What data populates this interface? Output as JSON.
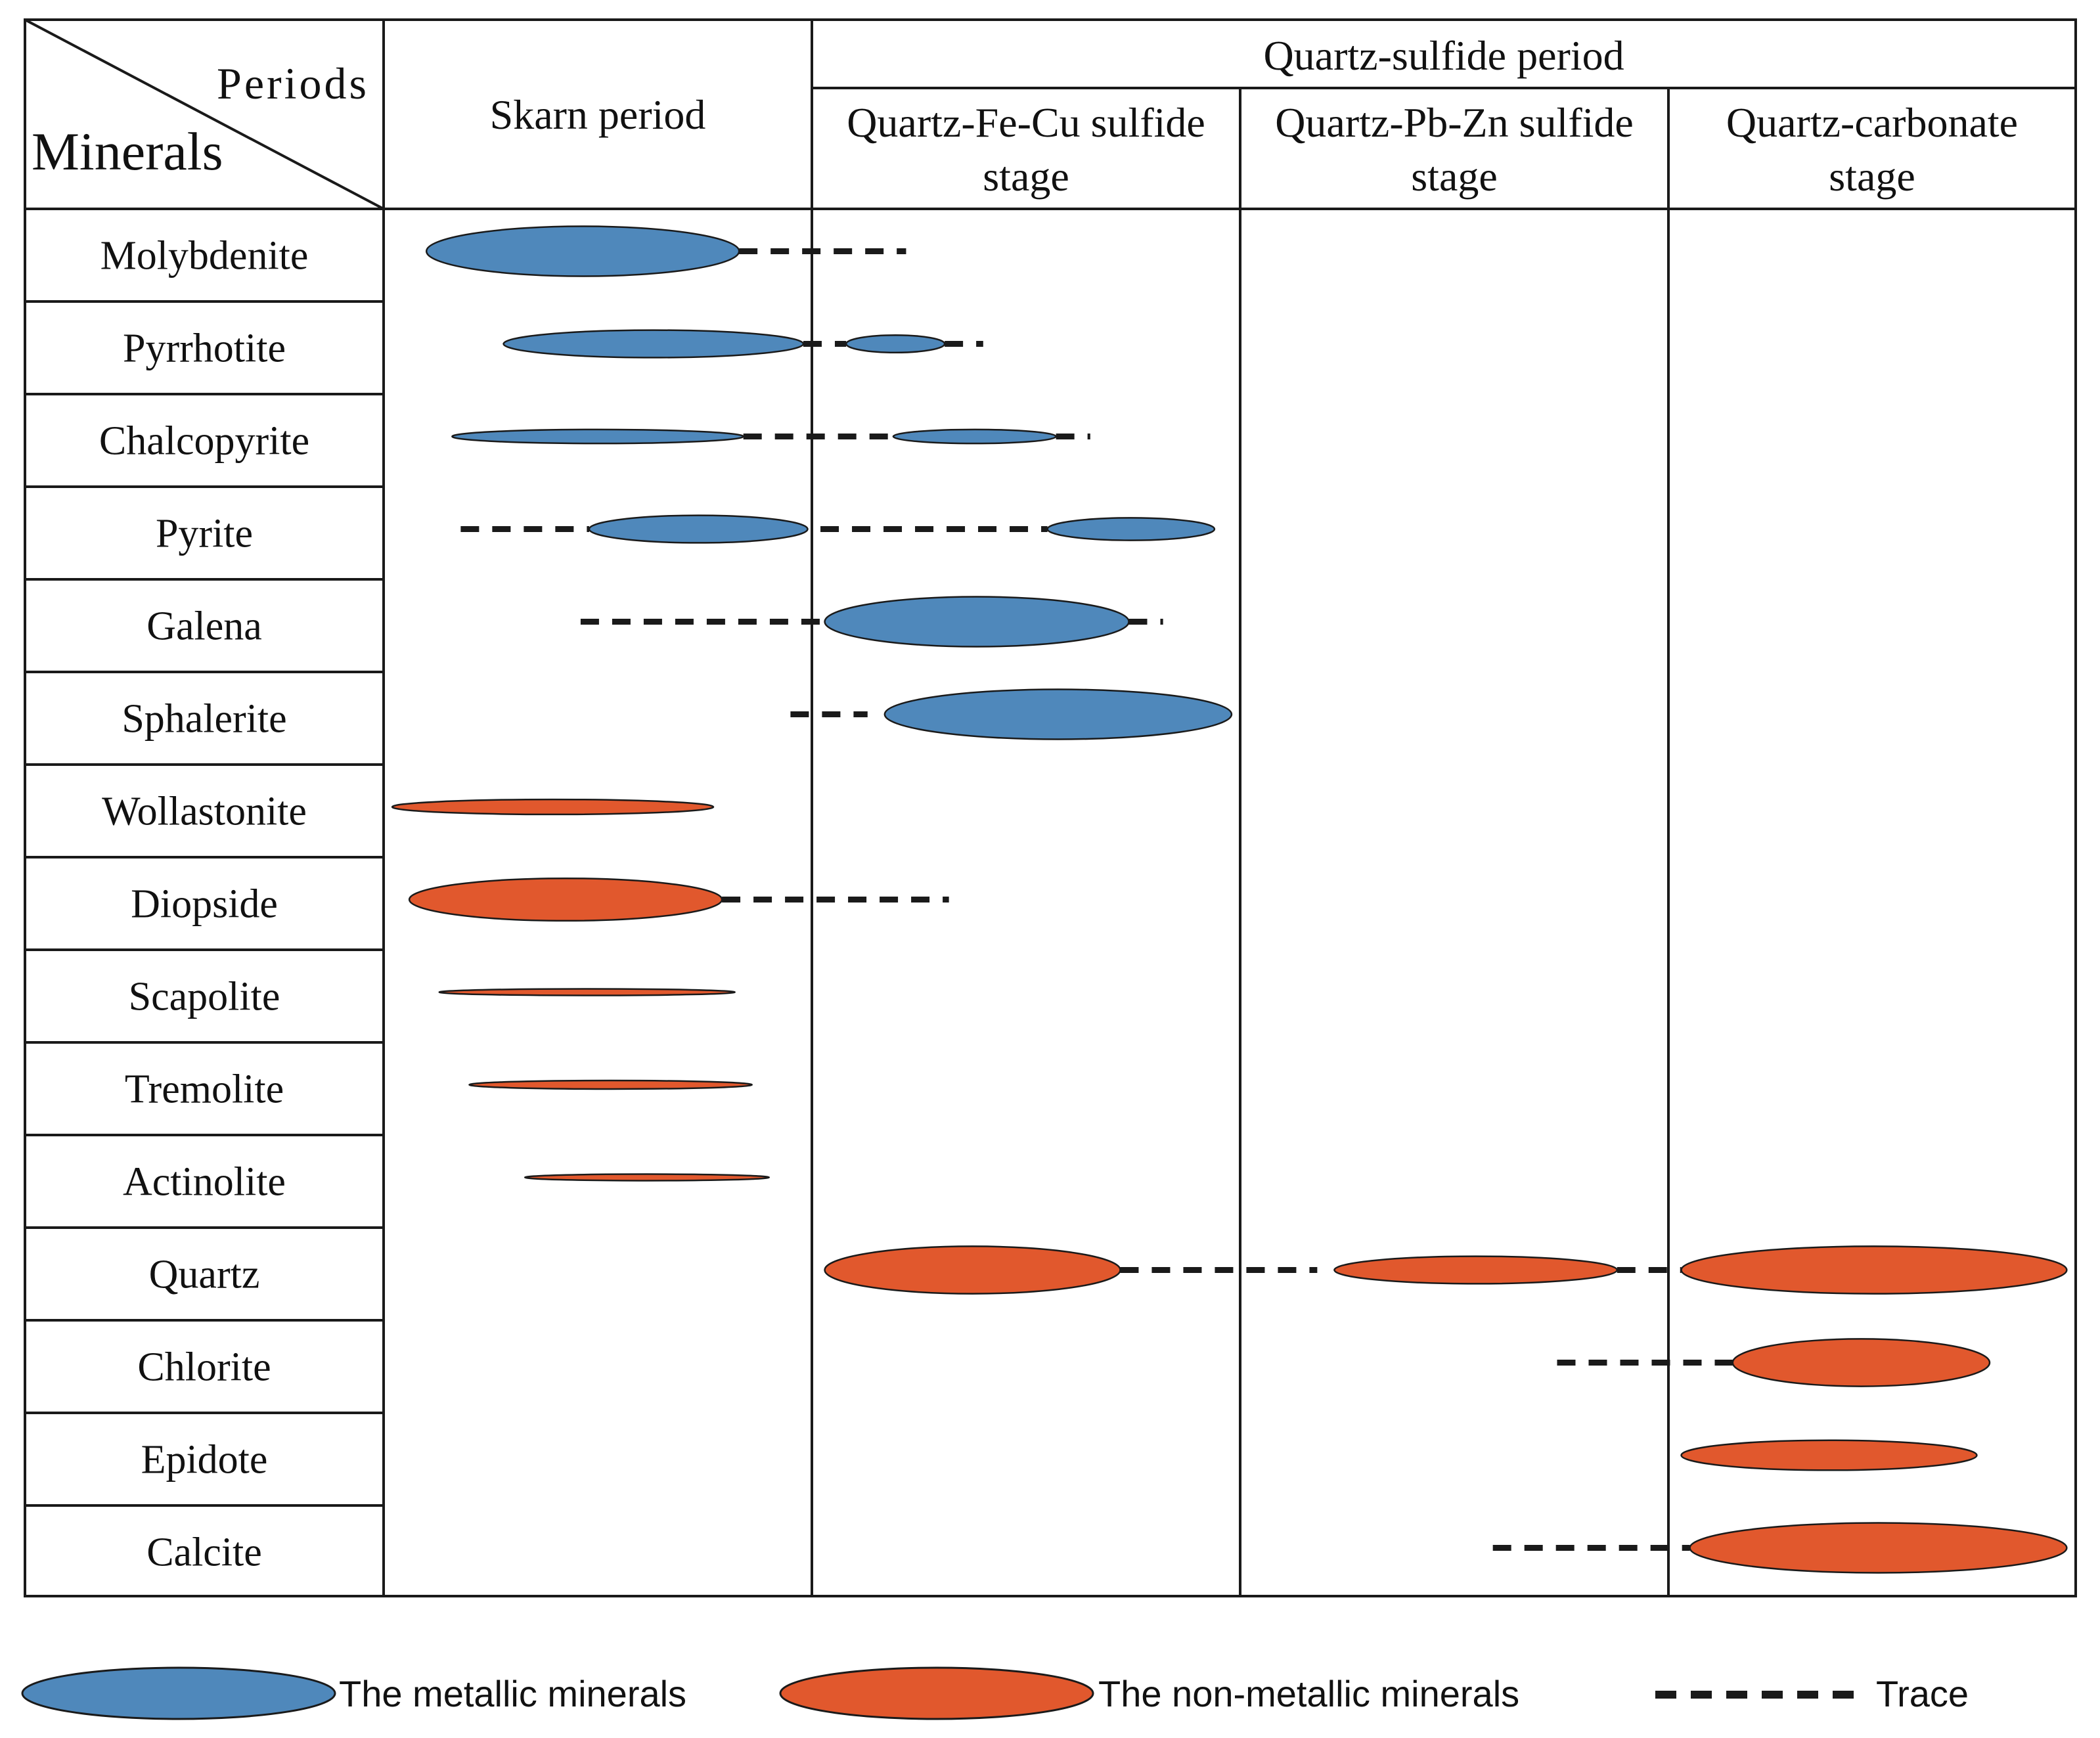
{
  "header": {
    "corner_periods": "Periods",
    "corner_minerals": "Minerals",
    "skarn_period": "Skarn period",
    "quartz_sulfide_period": "Quartz-sulfide period",
    "stages": [
      {
        "line1": "Quartz-Fe-Cu sulfide",
        "line2": "stage"
      },
      {
        "line1": "Quartz-Pb-Zn sulfide",
        "line2": "stage"
      },
      {
        "line1": "Quartz-carbonate",
        "line2": "stage"
      }
    ]
  },
  "colors": {
    "metallic": "#4f88bb",
    "non_metallic": "#e1582d",
    "line": "#1a1a1a",
    "text": "#111111"
  },
  "minerals": [
    {
      "name": "Molybdenite",
      "type": "metallic",
      "phases": [
        {
          "kind": "ellipse",
          "start": 0.1,
          "end": 0.83,
          "intensity": 1.0
        },
        {
          "kind": "trace",
          "start": 0.83,
          "end": 1.22
        }
      ]
    },
    {
      "name": "Pyrrhotite",
      "type": "metallic",
      "phases": [
        {
          "kind": "ellipse",
          "start": 0.28,
          "end": 0.98,
          "intensity": 0.55
        },
        {
          "kind": "trace",
          "start": 0.98,
          "end": 1.08
        },
        {
          "kind": "ellipse",
          "start": 1.08,
          "end": 1.31,
          "intensity": 0.35
        },
        {
          "kind": "trace",
          "start": 1.31,
          "end": 1.4
        }
      ]
    },
    {
      "name": "Chalcopyrite",
      "type": "metallic",
      "phases": [
        {
          "kind": "ellipse",
          "start": 0.16,
          "end": 0.84,
          "intensity": 0.28
        },
        {
          "kind": "trace",
          "start": 0.84,
          "end": 1.19
        },
        {
          "kind": "ellipse",
          "start": 1.19,
          "end": 1.57,
          "intensity": 0.28
        },
        {
          "kind": "trace",
          "start": 1.57,
          "end": 1.65
        }
      ]
    },
    {
      "name": "Pyrite",
      "type": "metallic",
      "phases": [
        {
          "kind": "trace",
          "start": 0.18,
          "end": 0.48
        },
        {
          "kind": "ellipse",
          "start": 0.48,
          "end": 0.99,
          "intensity": 0.55
        },
        {
          "kind": "trace",
          "start": 1.02,
          "end": 1.55
        },
        {
          "kind": "ellipse",
          "start": 1.55,
          "end": 1.94,
          "intensity": 0.45
        }
      ]
    },
    {
      "name": "Galena",
      "type": "metallic",
      "phases": [
        {
          "kind": "trace",
          "start": 0.46,
          "end": 1.03
        },
        {
          "kind": "ellipse",
          "start": 1.03,
          "end": 1.74,
          "intensity": 1.0
        },
        {
          "kind": "trace",
          "start": 1.74,
          "end": 1.82
        }
      ]
    },
    {
      "name": "Sphalerite",
      "type": "metallic",
      "phases": [
        {
          "kind": "trace",
          "start": 0.95,
          "end": 1.13
        },
        {
          "kind": "ellipse",
          "start": 1.17,
          "end": 1.98,
          "intensity": 1.0
        }
      ]
    },
    {
      "name": "Wollastonite",
      "type": "non-metallic",
      "phases": [
        {
          "kind": "ellipse",
          "start": 0.02,
          "end": 0.77,
          "intensity": 0.3
        }
      ]
    },
    {
      "name": "Diopside",
      "type": "non-metallic",
      "phases": [
        {
          "kind": "ellipse",
          "start": 0.06,
          "end": 0.79,
          "intensity": 0.85
        },
        {
          "kind": "trace",
          "start": 0.79,
          "end": 1.32
        }
      ]
    },
    {
      "name": "Scapolite",
      "type": "non-metallic",
      "phases": [
        {
          "kind": "ellipse",
          "start": 0.13,
          "end": 0.82,
          "intensity": 0.12
        }
      ]
    },
    {
      "name": "Tremolite",
      "type": "non-metallic",
      "phases": [
        {
          "kind": "ellipse",
          "start": 0.2,
          "end": 0.86,
          "intensity": 0.17
        }
      ]
    },
    {
      "name": "Actinolite",
      "type": "non-metallic",
      "phases": [
        {
          "kind": "ellipse",
          "start": 0.33,
          "end": 0.9,
          "intensity": 0.12
        }
      ]
    },
    {
      "name": "Quartz",
      "type": "non-metallic",
      "phases": [
        {
          "kind": "ellipse",
          "start": 1.03,
          "end": 1.72,
          "intensity": 0.95
        },
        {
          "kind": "trace",
          "start": 1.72,
          "end": 2.18
        },
        {
          "kind": "ellipse",
          "start": 2.22,
          "end": 2.88,
          "intensity": 0.55
        },
        {
          "kind": "trace",
          "start": 2.88,
          "end": 3.03
        },
        {
          "kind": "ellipse",
          "start": 3.03,
          "end": 3.93,
          "intensity": 0.95
        }
      ]
    },
    {
      "name": "Chlorite",
      "type": "non-metallic",
      "phases": [
        {
          "kind": "trace",
          "start": 2.74,
          "end": 3.15
        },
        {
          "kind": "ellipse",
          "start": 3.15,
          "end": 3.75,
          "intensity": 0.95
        }
      ]
    },
    {
      "name": "Epidote",
      "type": "non-metallic",
      "phases": [
        {
          "kind": "ellipse",
          "start": 3.03,
          "end": 3.72,
          "intensity": 0.6
        }
      ]
    },
    {
      "name": "Calcite",
      "type": "non-metallic",
      "phases": [
        {
          "kind": "trace",
          "start": 2.59,
          "end": 3.05
        },
        {
          "kind": "ellipse",
          "start": 3.05,
          "end": 3.93,
          "intensity": 1.0
        }
      ]
    }
  ],
  "legend": {
    "metallic": "The metallic minerals",
    "non_metallic": "The non-metallic minerals",
    "trace": "Trace"
  }
}
